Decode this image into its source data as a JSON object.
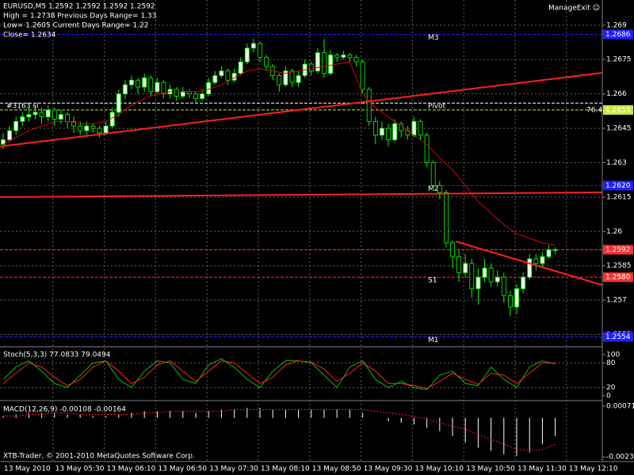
{
  "window": {
    "symbol_line": "EURUSD,M5  1.2592 1.2592 1.2592 1.2592",
    "info": [
      "High = 1.2738    Previous Days Range= 1.33",
      "Low= 1.2605    Current Days Range= 1.22",
      "Close= 1.2634"
    ],
    "expert": "ManageExit ☺",
    "copyright": "XTB-Trader, © 2001-2010 MetaQuotes Software Corp."
  },
  "price": {
    "ylim": [
      1.255,
      1.2701
    ],
    "ticks": [
      1.269,
      1.2675,
      1.266,
      1.2645,
      1.263,
      1.2615,
      1.26,
      1.2585,
      1.257,
      1.2555
    ],
    "levels": [
      {
        "name": "M3",
        "value": 1.2686,
        "color": "#2020ff",
        "label": "1.2686"
      },
      {
        "name": "Pivot",
        "value": 1.2656,
        "color": "#ffffff"
      },
      {
        "value": 1.2653,
        "color": "#c8e840",
        "label": "1.2653",
        "note": "76.4"
      },
      {
        "name": "M2",
        "value": 1.262,
        "color": "#2020ff",
        "label": "1.2620"
      },
      {
        "value": 1.2592,
        "color": "#ff3030",
        "label": "1.2592"
      },
      {
        "name": "S1",
        "value": 1.258,
        "color": "#ff3030",
        "label": "1.2580"
      },
      {
        "name": "M1",
        "value": 1.2554,
        "color": "#2020ff",
        "label": "1.2554"
      }
    ],
    "object_label": "#3163 sl",
    "bull_color": "#e8ffe0",
    "bear_color": "#000000",
    "wick_color": "#00ff00",
    "ma_color": "#e00000",
    "candles": [
      [
        1.2638,
        1.2643,
        1.2636,
        1.264
      ],
      [
        1.264,
        1.2646,
        1.2639,
        1.2644
      ],
      [
        1.2644,
        1.265,
        1.2642,
        1.2648
      ],
      [
        1.2648,
        1.2652,
        1.2646,
        1.265
      ],
      [
        1.265,
        1.2654,
        1.2648,
        1.2651
      ],
      [
        1.2651,
        1.2655,
        1.2649,
        1.2652
      ],
      [
        1.2652,
        1.2654,
        1.2647,
        1.265
      ],
      [
        1.265,
        1.2655,
        1.2648,
        1.2653
      ],
      [
        1.2653,
        1.2654,
        1.2646,
        1.2649
      ],
      [
        1.2649,
        1.2653,
        1.2647,
        1.2651
      ],
      [
        1.2651,
        1.2652,
        1.2645,
        1.2648
      ],
      [
        1.2648,
        1.265,
        1.2643,
        1.2646
      ],
      [
        1.2646,
        1.2648,
        1.2642,
        1.2644
      ],
      [
        1.2644,
        1.2648,
        1.2642,
        1.2646
      ],
      [
        1.2646,
        1.2647,
        1.2643,
        1.2645
      ],
      [
        1.2645,
        1.2646,
        1.2641,
        1.2643
      ],
      [
        1.2643,
        1.2648,
        1.2642,
        1.2646
      ],
      [
        1.2646,
        1.2654,
        1.2645,
        1.2652
      ],
      [
        1.2652,
        1.2662,
        1.265,
        1.266
      ],
      [
        1.266,
        1.2666,
        1.2658,
        1.2664
      ],
      [
        1.2664,
        1.2668,
        1.2662,
        1.2666
      ],
      [
        1.2666,
        1.2667,
        1.266,
        1.2663
      ],
      [
        1.2663,
        1.2669,
        1.2661,
        1.2667
      ],
      [
        1.2667,
        1.2668,
        1.2659,
        1.2661
      ],
      [
        1.2661,
        1.2667,
        1.266,
        1.2665
      ],
      [
        1.2665,
        1.2666,
        1.2658,
        1.266
      ],
      [
        1.266,
        1.2664,
        1.2658,
        1.2662
      ],
      [
        1.2662,
        1.2663,
        1.2657,
        1.2659
      ],
      [
        1.2659,
        1.2663,
        1.2658,
        1.2661
      ],
      [
        1.2661,
        1.2662,
        1.2658,
        1.266
      ],
      [
        1.266,
        1.2661,
        1.2656,
        1.2658
      ],
      [
        1.2658,
        1.2662,
        1.2657,
        1.266
      ],
      [
        1.266,
        1.2667,
        1.2659,
        1.2665
      ],
      [
        1.2665,
        1.267,
        1.2664,
        1.2668
      ],
      [
        1.2668,
        1.2672,
        1.2667,
        1.267
      ],
      [
        1.267,
        1.2671,
        1.2664,
        1.2666
      ],
      [
        1.2666,
        1.2671,
        1.2665,
        1.2669
      ],
      [
        1.2669,
        1.2676,
        1.2668,
        1.2674
      ],
      [
        1.2674,
        1.2682,
        1.2673,
        1.268
      ],
      [
        1.268,
        1.2684,
        1.2678,
        1.2682
      ],
      [
        1.2682,
        1.2683,
        1.2674,
        1.2676
      ],
      [
        1.2676,
        1.2677,
        1.267,
        1.2672
      ],
      [
        1.2672,
        1.2673,
        1.2666,
        1.2668
      ],
      [
        1.2668,
        1.2669,
        1.2661,
        1.2664
      ],
      [
        1.2664,
        1.2672,
        1.2663,
        1.267
      ],
      [
        1.267,
        1.2671,
        1.2663,
        1.2665
      ],
      [
        1.2665,
        1.267,
        1.2663,
        1.2668
      ],
      [
        1.2668,
        1.2675,
        1.2667,
        1.2673
      ],
      [
        1.2673,
        1.2674,
        1.2668,
        1.267
      ],
      [
        1.267,
        1.268,
        1.2669,
        1.2678
      ],
      [
        1.2678,
        1.2684,
        1.2667,
        1.2669
      ],
      [
        1.2669,
        1.2679,
        1.2668,
        1.2677
      ],
      [
        1.2677,
        1.2678,
        1.2674,
        1.2676
      ],
      [
        1.2676,
        1.2679,
        1.2675,
        1.2677
      ],
      [
        1.2677,
        1.2678,
        1.2674,
        1.2676
      ],
      [
        1.2676,
        1.2677,
        1.2672,
        1.2674
      ],
      [
        1.2674,
        1.2675,
        1.266,
        1.2662
      ],
      [
        1.2662,
        1.2663,
        1.2646,
        1.2648
      ],
      [
        1.2648,
        1.265,
        1.2638,
        1.2642
      ],
      [
        1.2642,
        1.2648,
        1.264,
        1.2645
      ],
      [
        1.2645,
        1.2647,
        1.2637,
        1.264
      ],
      [
        1.264,
        1.2649,
        1.2639,
        1.2647
      ],
      [
        1.2647,
        1.2648,
        1.2641,
        1.2644
      ],
      [
        1.2644,
        1.2646,
        1.264,
        1.2642
      ],
      [
        1.2642,
        1.265,
        1.2641,
        1.2648
      ],
      [
        1.2648,
        1.2649,
        1.264,
        1.2642
      ],
      [
        1.2642,
        1.2643,
        1.2628,
        1.263
      ],
      [
        1.263,
        1.2631,
        1.2618,
        1.262
      ],
      [
        1.262,
        1.2622,
        1.2614,
        1.2617
      ],
      [
        1.2617,
        1.2618,
        1.2593,
        1.2595
      ],
      [
        1.2595,
        1.2596,
        1.2584,
        1.2589
      ],
      [
        1.2589,
        1.2592,
        1.2578,
        1.2582
      ],
      [
        1.2582,
        1.259,
        1.258,
        1.2586
      ],
      [
        1.2586,
        1.2588,
        1.2571,
        1.2575
      ],
      [
        1.2575,
        1.2584,
        1.2568,
        1.258
      ],
      [
        1.258,
        1.2588,
        1.2578,
        1.2584
      ],
      [
        1.2584,
        1.2586,
        1.2576,
        1.2578
      ],
      [
        1.2578,
        1.2583,
        1.2576,
        1.258
      ],
      [
        1.258,
        1.2582,
        1.2569,
        1.2572
      ],
      [
        1.2572,
        1.2574,
        1.2563,
        1.2567
      ],
      [
        1.2567,
        1.2577,
        1.2564,
        1.2575
      ],
      [
        1.2575,
        1.2582,
        1.2573,
        1.258
      ],
      [
        1.258,
        1.259,
        1.2579,
        1.2588
      ],
      [
        1.2588,
        1.259,
        1.2583,
        1.2586
      ],
      [
        1.2586,
        1.2591,
        1.2584,
        1.2589
      ],
      [
        1.2589,
        1.2594,
        1.2588,
        1.2592
      ],
      [
        1.2592,
        1.2593,
        1.259,
        1.2592
      ]
    ],
    "ma": [
      1.2638,
      1.2641,
      1.2644,
      1.2646,
      1.2648,
      1.2648,
      1.2647,
      1.2647,
      1.2648,
      1.2651,
      1.2655,
      1.2658,
      1.266,
      1.2661,
      1.2661,
      1.2661,
      1.2662,
      1.2664,
      1.2667,
      1.267,
      1.2671,
      1.267,
      1.2669,
      1.267,
      1.2671,
      1.2672,
      1.2673,
      1.2674,
      1.266,
      1.2654,
      1.265,
      1.2646,
      1.2642,
      1.2638,
      1.2632,
      1.2627,
      1.262,
      1.2613,
      1.2608,
      1.2603,
      1.2599,
      1.2597,
      1.2595,
      1.2594
    ]
  },
  "stoch": {
    "label": "Stoch(5,3,3) 77.0833 79.0494",
    "ticks": [
      100,
      80,
      20,
      0
    ],
    "main_color": "#00c000",
    "signal_color": "#ff2020",
    "main": [
      40,
      70,
      85,
      60,
      30,
      20,
      50,
      80,
      85,
      40,
      20,
      60,
      85,
      80,
      40,
      30,
      75,
      90,
      70,
      40,
      20,
      60,
      85,
      85,
      80,
      50,
      20,
      70,
      85,
      40,
      20,
      35,
      20,
      15,
      50,
      60,
      30,
      25,
      70,
      40,
      20,
      70,
      85,
      77
    ],
    "signal": [
      30,
      55,
      80,
      70,
      45,
      25,
      40,
      70,
      85,
      60,
      30,
      45,
      75,
      85,
      60,
      35,
      60,
      85,
      80,
      55,
      30,
      45,
      75,
      85,
      82,
      65,
      35,
      55,
      80,
      60,
      30,
      30,
      25,
      18,
      35,
      55,
      40,
      28,
      55,
      50,
      30,
      55,
      80,
      79
    ]
  },
  "macd": {
    "label": "MACD(12,26,9) -0.00108 -0.00164",
    "ticks": [
      0.00071,
      -0.00236
    ],
    "ylim": [
      -0.0025,
      0.00085
    ],
    "hist_color": "#ffffff",
    "signal_color": "#ff2020",
    "hist": [
      0.0001,
      0.0002,
      0.0003,
      0.0003,
      0.0003,
      0.0002,
      0.0002,
      0.0001,
      0.0001,
      0.0002,
      0.0003,
      0.0004,
      0.0004,
      0.0004,
      0.0004,
      0.0003,
      0.0004,
      0.0005,
      0.0005,
      0.0006,
      0.0006,
      0.0005,
      0.0005,
      0.0005,
      0.0005,
      0.0005,
      0.0005,
      0.0005,
      0.0003,
      0.0,
      -0.0002,
      -0.0003,
      -0.0004,
      -0.0006,
      -0.0008,
      -0.0011,
      -0.0015,
      -0.0018,
      -0.002,
      -0.0022,
      -0.0023,
      -0.0021,
      -0.0016,
      -0.0011
    ],
    "signal": [
      0.0001,
      0.0001,
      0.0002,
      0.0002,
      0.0003,
      0.0003,
      0.0002,
      0.0002,
      0.0002,
      0.0002,
      0.0002,
      0.0003,
      0.0003,
      0.0004,
      0.0004,
      0.0004,
      0.0004,
      0.0004,
      0.0005,
      0.0005,
      0.0005,
      0.0005,
      0.0005,
      0.0005,
      0.0005,
      0.0005,
      0.0005,
      0.0005,
      0.0005,
      0.0004,
      0.0003,
      0.0002,
      0.0001,
      -0.0001,
      -0.0003,
      -0.0005,
      -0.0007,
      -0.001,
      -0.0013,
      -0.0016,
      -0.0019,
      -0.002,
      -0.0019,
      -0.0016
    ]
  },
  "time_axis": [
    "13 May 2010",
    "13 May 05:30",
    "13 May 06:10",
    "13 May 06:50",
    "13 May 07:30",
    "13 May 08:10",
    "13 May 08:50",
    "13 May 09:30",
    "13 May 10:10",
    "13 May 10:50",
    "13 May 11:30",
    "13 May 12:10"
  ]
}
